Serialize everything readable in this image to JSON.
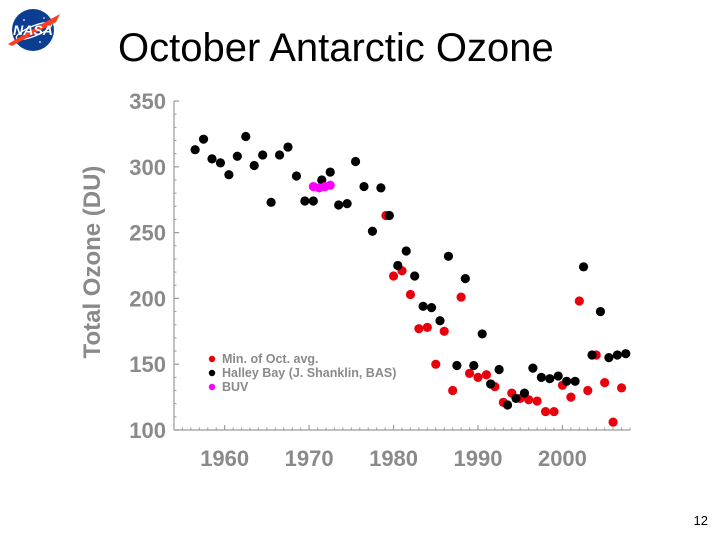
{
  "slide": {
    "title": "October Antarctic Ozone",
    "page_number": "12"
  },
  "logo": {
    "text": "NASA",
    "icon": "nasa-meatball-logo"
  },
  "colors": {
    "min_avg": "#e8000d",
    "halley": "#000000",
    "buv": "#ff00ff",
    "axis_text": "#8a8a8a"
  },
  "chart_data": {
    "type": "scatter",
    "title": "October Antarctic Ozone",
    "xlabel": "",
    "ylabel": "Total Ozone (DU)",
    "xlim": [
      1954,
      2008
    ],
    "ylim": [
      100,
      350
    ],
    "xticks": [
      "1960",
      "1970",
      "1980",
      "1990",
      "2000"
    ],
    "yticks": [
      "350",
      "300",
      "250",
      "200",
      "150",
      "100"
    ],
    "legend_position": "lower-left",
    "series": [
      {
        "name": "Min. of Oct. avg.",
        "color": "#e8000d",
        "points": [
          [
            1979.1,
            263
          ],
          [
            1980.0,
            217
          ],
          [
            1981.0,
            221
          ],
          [
            1982.0,
            203
          ],
          [
            1983.0,
            177
          ],
          [
            1984.0,
            178
          ],
          [
            1985.0,
            150
          ],
          [
            1986.0,
            175
          ],
          [
            1987.0,
            130
          ],
          [
            1988.0,
            201
          ],
          [
            1989.0,
            143
          ],
          [
            1990.0,
            140
          ],
          [
            1991.0,
            142
          ],
          [
            1992.0,
            133
          ],
          [
            1993.0,
            121
          ],
          [
            1994.0,
            128
          ],
          [
            1995.0,
            124
          ],
          [
            1996.0,
            123
          ],
          [
            1997.0,
            122
          ],
          [
            1998.0,
            114
          ],
          [
            1999.0,
            114
          ],
          [
            2000.0,
            134
          ],
          [
            2001.0,
            125
          ],
          [
            2002.0,
            198
          ],
          [
            2003.0,
            130
          ],
          [
            2004.0,
            157
          ],
          [
            2005.0,
            136
          ],
          [
            2006.0,
            106
          ],
          [
            2007.0,
            132
          ]
        ]
      },
      {
        "name": "Halley Bay (J. Shanklin, BAS)",
        "color": "#000000",
        "points": [
          [
            1956.5,
            313
          ],
          [
            1957.5,
            321
          ],
          [
            1958.5,
            306
          ],
          [
            1959.5,
            303
          ],
          [
            1960.5,
            294
          ],
          [
            1961.5,
            308
          ],
          [
            1962.5,
            323
          ],
          [
            1963.5,
            301
          ],
          [
            1964.5,
            309
          ],
          [
            1965.5,
            273
          ],
          [
            1966.5,
            309
          ],
          [
            1967.5,
            315
          ],
          [
            1968.5,
            293
          ],
          [
            1969.5,
            274
          ],
          [
            1970.5,
            274
          ],
          [
            1971.5,
            290
          ],
          [
            1972.5,
            296
          ],
          [
            1973.5,
            271
          ],
          [
            1974.5,
            272
          ],
          [
            1975.5,
            304
          ],
          [
            1976.5,
            285
          ],
          [
            1977.5,
            251
          ],
          [
            1978.5,
            284
          ],
          [
            1979.5,
            263
          ],
          [
            1980.5,
            225
          ],
          [
            1981.5,
            236
          ],
          [
            1982.5,
            217
          ],
          [
            1983.5,
            194
          ],
          [
            1984.5,
            193
          ],
          [
            1985.5,
            183
          ],
          [
            1986.5,
            232
          ],
          [
            1987.5,
            149
          ],
          [
            1988.5,
            215
          ],
          [
            1989.5,
            149
          ],
          [
            1990.5,
            173
          ],
          [
            1991.5,
            135
          ],
          [
            1992.5,
            146
          ],
          [
            1993.5,
            119
          ],
          [
            1994.5,
            124
          ],
          [
            1995.5,
            128
          ],
          [
            1996.5,
            147
          ],
          [
            1997.5,
            140
          ],
          [
            1998.5,
            139
          ],
          [
            1999.5,
            141
          ],
          [
            2000.5,
            137
          ],
          [
            2001.5,
            137
          ],
          [
            2002.5,
            224
          ],
          [
            2003.5,
            157
          ],
          [
            2004.5,
            190
          ],
          [
            2005.5,
            155
          ],
          [
            2006.5,
            157
          ],
          [
            2007.5,
            158
          ]
        ]
      },
      {
        "name": "BUV",
        "color": "#ff00ff",
        "points": [
          [
            1970.5,
            285
          ],
          [
            1971.2,
            284
          ],
          [
            1971.9,
            285
          ],
          [
            1972.5,
            286
          ]
        ]
      }
    ]
  }
}
